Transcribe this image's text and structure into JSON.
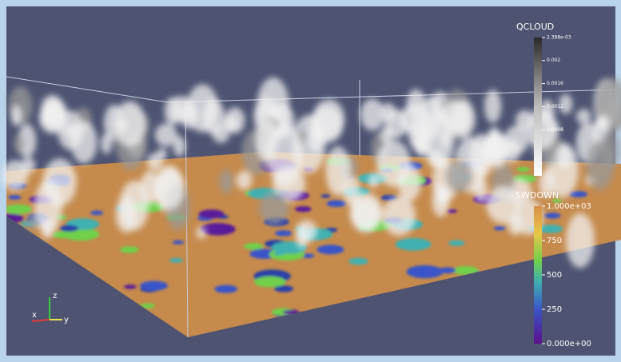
{
  "colorbars": [
    {
      "title": "QCLOUD",
      "range": [
        0,
        0.002398
      ],
      "ticks": [
        {
          "value": 0.002398,
          "label": "2.398e-03"
        },
        0.002,
        0.0016,
        0.0012,
        0.0008
      ]
    },
    {
      "title": "SWDOWN",
      "range": [
        0,
        1000
      ],
      "ticks": [
        {
          "value": 1000,
          "label": "1.000e+03"
        },
        750,
        500,
        250,
        {
          "value": 0,
          "label": "0.000e+00"
        }
      ]
    }
  ],
  "axes_triad": {
    "z": "z",
    "x": "x",
    "y": "y"
  }
}
